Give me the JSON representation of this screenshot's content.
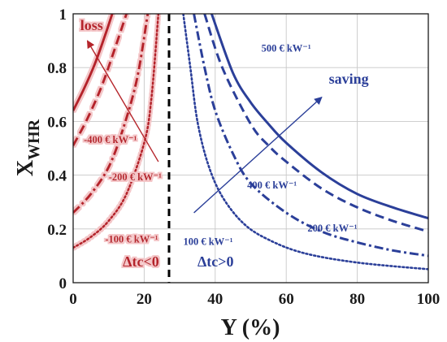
{
  "chart_data": {
    "type": "line",
    "xlabel": "Y (%)",
    "ylabel_main": "X",
    "ylabel_sub": "WHR",
    "xlim": [
      0,
      100
    ],
    "ylim": [
      0,
      1
    ],
    "x_ticks": [
      0,
      20,
      40,
      60,
      80,
      100
    ],
    "y_ticks": [
      0,
      0.2,
      0.4,
      0.6,
      0.8,
      1
    ],
    "x_tick_labels": [
      "0",
      "20",
      "40",
      "60",
      "80",
      "100"
    ],
    "y_tick_labels": [
      "0",
      "0.2",
      "0.4",
      "0.6",
      "0.8",
      "1"
    ],
    "grid": true,
    "divider": {
      "x": 27,
      "style": "dashed",
      "color": "#000000"
    },
    "colors": {
      "loss": "#b5242a",
      "saving": "#2b3f99",
      "loss_glow": "#f4c6c8"
    },
    "series": [
      {
        "group": "loss",
        "style": "solid",
        "color": "#b5242a",
        "points": [
          [
            0,
            0.64
          ],
          [
            3,
            0.72
          ],
          [
            6,
            0.81
          ],
          [
            9,
            0.92
          ],
          [
            11,
            1.0
          ]
        ]
      },
      {
        "group": "loss",
        "style": "dashed",
        "color": "#b5242a",
        "points": [
          [
            0,
            0.51
          ],
          [
            4,
            0.61
          ],
          [
            8,
            0.73
          ],
          [
            12,
            0.88
          ],
          [
            15,
            1.0
          ]
        ]
      },
      {
        "group": "loss",
        "style": "dashdot",
        "color": "#b5242a",
        "points": [
          [
            0,
            0.26
          ],
          [
            5,
            0.33
          ],
          [
            10,
            0.43
          ],
          [
            14,
            0.57
          ],
          [
            18,
            0.76
          ],
          [
            21,
            1.0
          ]
        ]
      },
      {
        "group": "loss",
        "style": "dotted",
        "color": "#b5242a",
        "points": [
          [
            0,
            0.13
          ],
          [
            5,
            0.17
          ],
          [
            10,
            0.23
          ],
          [
            15,
            0.33
          ],
          [
            20,
            0.52
          ],
          [
            22,
            0.68
          ],
          [
            24,
            1.0
          ]
        ]
      },
      {
        "group": "saving",
        "style": "solid",
        "color": "#2b3f99",
        "points": [
          [
            39,
            1.0
          ],
          [
            45,
            0.78
          ],
          [
            50,
            0.67
          ],
          [
            55,
            0.59
          ],
          [
            60,
            0.52
          ],
          [
            70,
            0.41
          ],
          [
            80,
            0.33
          ],
          [
            90,
            0.28
          ],
          [
            100,
            0.24
          ]
        ]
      },
      {
        "group": "saving",
        "style": "dashed",
        "color": "#2b3f99",
        "points": [
          [
            37,
            1.0
          ],
          [
            42,
            0.8
          ],
          [
            50,
            0.59
          ],
          [
            55,
            0.51
          ],
          [
            60,
            0.45
          ],
          [
            70,
            0.35
          ],
          [
            80,
            0.28
          ],
          [
            90,
            0.23
          ],
          [
            100,
            0.19
          ]
        ]
      },
      {
        "group": "saving",
        "style": "dashdot",
        "color": "#2b3f99",
        "points": [
          [
            34,
            1.0
          ],
          [
            37,
            0.8
          ],
          [
            40,
            0.64
          ],
          [
            45,
            0.48
          ],
          [
            50,
            0.37
          ],
          [
            60,
            0.26
          ],
          [
            70,
            0.19
          ],
          [
            80,
            0.15
          ],
          [
            90,
            0.12
          ],
          [
            100,
            0.1
          ]
        ]
      },
      {
        "group": "saving",
        "style": "dotted",
        "color": "#2b3f99",
        "points": [
          [
            31,
            1.0
          ],
          [
            33,
            0.8
          ],
          [
            35,
            0.6
          ],
          [
            38,
            0.44
          ],
          [
            42,
            0.32
          ],
          [
            48,
            0.22
          ],
          [
            55,
            0.16
          ],
          [
            65,
            0.11
          ],
          [
            80,
            0.075
          ],
          [
            100,
            0.05
          ]
        ]
      }
    ],
    "annotations": [
      {
        "text": "loss",
        "x": 2,
        "y": 0.94,
        "color": "#b5242a",
        "kind": "region"
      },
      {
        "text": "saving",
        "x": 72,
        "y": 0.74,
        "color": "#2b3f99",
        "kind": "region"
      },
      {
        "text": "Δtc<0",
        "x": 14,
        "y": 0.06,
        "color": "#b5242a",
        "kind": "region"
      },
      {
        "text": "Δtc>0",
        "x": 35,
        "y": 0.06,
        "color": "#2b3f99",
        "kind": "region"
      },
      {
        "text": "-400 € kW⁻¹",
        "x": 3,
        "y": 0.52,
        "color": "#b5242a",
        "kind": "curve"
      },
      {
        "text": "-200 € kW⁻¹",
        "x": 10,
        "y": 0.38,
        "color": "#b5242a",
        "kind": "curve"
      },
      {
        "text": "-100 € kW⁻¹",
        "x": 9,
        "y": 0.15,
        "color": "#b5242a",
        "kind": "curve"
      },
      {
        "text": "500 € kW⁻¹",
        "x": 53,
        "y": 0.86,
        "color": "#2b3f99",
        "kind": "curve"
      },
      {
        "text": "400 € kW⁻¹",
        "x": 49,
        "y": 0.35,
        "color": "#2b3f99",
        "kind": "curve"
      },
      {
        "text": "200 € kW⁻¹",
        "x": 66,
        "y": 0.19,
        "color": "#2b3f99",
        "kind": "curve"
      },
      {
        "text": "100 € kW⁻¹",
        "x": 31,
        "y": 0.14,
        "color": "#2b3f99",
        "kind": "curve"
      }
    ],
    "arrows": [
      {
        "group": "loss",
        "from": [
          24,
          0.45
        ],
        "to": [
          4,
          0.9
        ],
        "color": "#b5242a"
      },
      {
        "group": "saving",
        "from": [
          34,
          0.26
        ],
        "to": [
          70,
          0.69
        ],
        "color": "#2b3f99"
      }
    ]
  }
}
